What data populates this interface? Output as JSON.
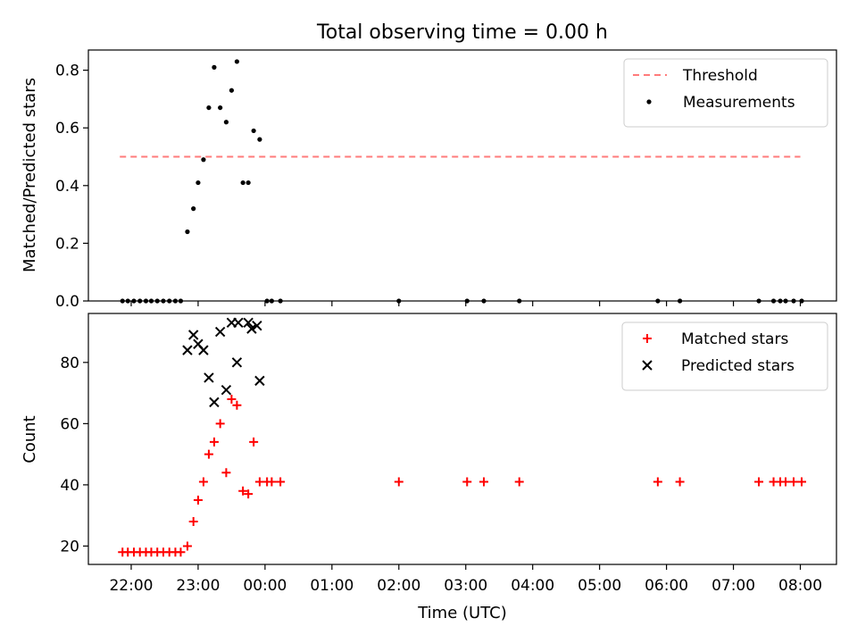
{
  "chart_data": {
    "type": "scatter",
    "title": "Total observing time = 0.00 h",
    "xlabel": "Time (UTC)",
    "x_ticks": [
      "22:00",
      "23:00",
      "00:00",
      "01:00",
      "02:00",
      "03:00",
      "04:00",
      "05:00",
      "06:00",
      "07:00",
      "08:00"
    ],
    "x_range_hours": [
      21.36,
      32.54
    ],
    "panels": [
      {
        "ylabel": "Matched/Predicted stars",
        "ylim": [
          0,
          0.87
        ],
        "y_ticks": [
          "0.0",
          "0.2",
          "0.4",
          "0.6",
          "0.8"
        ],
        "y_tick_values": [
          0,
          0.2,
          0.4,
          0.6,
          0.8
        ],
        "legend_position": "upper right",
        "threshold": {
          "name": "Threshold",
          "value": 0.5,
          "x_range_hours": [
            21.83,
            32.0
          ],
          "color": "#ff7b7b"
        },
        "series": [
          {
            "name": "Measurements",
            "marker": "dot",
            "color": "#000000",
            "points": [
              [
                21.87,
                0.0
              ],
              [
                21.95,
                0.0
              ],
              [
                22.04,
                0.0
              ],
              [
                22.13,
                0.0
              ],
              [
                22.22,
                0.0
              ],
              [
                22.3,
                0.0
              ],
              [
                22.39,
                0.0
              ],
              [
                22.48,
                0.0
              ],
              [
                22.57,
                0.0
              ],
              [
                22.66,
                0.0
              ],
              [
                22.74,
                0.0
              ],
              [
                22.84,
                0.24
              ],
              [
                22.93,
                0.32
              ],
              [
                23.0,
                0.41
              ],
              [
                23.08,
                0.49
              ],
              [
                23.16,
                0.67
              ],
              [
                23.24,
                0.81
              ],
              [
                23.33,
                0.67
              ],
              [
                23.42,
                0.62
              ],
              [
                23.5,
                0.73
              ],
              [
                23.58,
                0.83
              ],
              [
                23.67,
                0.41
              ],
              [
                23.75,
                0.41
              ],
              [
                23.83,
                0.59
              ],
              [
                23.92,
                0.56
              ],
              [
                24.03,
                0.0
              ],
              [
                24.1,
                0.0
              ],
              [
                24.23,
                0.0
              ],
              [
                26.0,
                0.0
              ],
              [
                27.02,
                0.0
              ],
              [
                27.27,
                0.0
              ],
              [
                27.8,
                0.0
              ],
              [
                29.87,
                0.0
              ],
              [
                30.2,
                0.0
              ],
              [
                31.38,
                0.0
              ],
              [
                31.6,
                0.0
              ],
              [
                31.7,
                0.0
              ],
              [
                31.78,
                0.0
              ],
              [
                31.9,
                0.0
              ],
              [
                32.02,
                0.0
              ]
            ]
          }
        ]
      },
      {
        "ylabel": "Count",
        "ylim": [
          14,
          96
        ],
        "y_ticks": [
          "20",
          "40",
          "60",
          "80"
        ],
        "y_tick_values": [
          20,
          40,
          60,
          80
        ],
        "legend_position": "upper right",
        "series": [
          {
            "name": "Matched stars",
            "marker": "plus",
            "color": "#ff0000",
            "points": [
              [
                21.87,
                18
              ],
              [
                21.95,
                18
              ],
              [
                22.04,
                18
              ],
              [
                22.13,
                18
              ],
              [
                22.22,
                18
              ],
              [
                22.3,
                18
              ],
              [
                22.39,
                18
              ],
              [
                22.48,
                18
              ],
              [
                22.57,
                18
              ],
              [
                22.66,
                18
              ],
              [
                22.74,
                18
              ],
              [
                22.84,
                20
              ],
              [
                22.93,
                28
              ],
              [
                23.0,
                35
              ],
              [
                23.08,
                41
              ],
              [
                23.16,
                50
              ],
              [
                23.24,
                54
              ],
              [
                23.33,
                60
              ],
              [
                23.42,
                44
              ],
              [
                23.5,
                68
              ],
              [
                23.58,
                66
              ],
              [
                23.67,
                38
              ],
              [
                23.75,
                37
              ],
              [
                23.83,
                54
              ],
              [
                23.92,
                41
              ],
              [
                24.03,
                41
              ],
              [
                24.1,
                41
              ],
              [
                24.23,
                41
              ],
              [
                26.0,
                41
              ],
              [
                27.02,
                41
              ],
              [
                27.27,
                41
              ],
              [
                27.8,
                41
              ],
              [
                29.87,
                41
              ],
              [
                30.2,
                41
              ],
              [
                31.38,
                41
              ],
              [
                31.6,
                41
              ],
              [
                31.7,
                41
              ],
              [
                31.78,
                41
              ],
              [
                31.9,
                41
              ],
              [
                32.02,
                41
              ]
            ]
          },
          {
            "name": "Predicted stars",
            "marker": "x",
            "color": "#000000",
            "points": [
              [
                22.84,
                84
              ],
              [
                22.93,
                89
              ],
              [
                23.0,
                86
              ],
              [
                23.08,
                84
              ],
              [
                23.16,
                75
              ],
              [
                23.24,
                67
              ],
              [
                23.33,
                90
              ],
              [
                23.42,
                71
              ],
              [
                23.5,
                93
              ],
              [
                23.58,
                80
              ],
              [
                23.6,
                93
              ],
              [
                23.75,
                93
              ],
              [
                23.8,
                91
              ],
              [
                23.88,
                92
              ],
              [
                23.92,
                74
              ]
            ]
          }
        ]
      }
    ]
  }
}
